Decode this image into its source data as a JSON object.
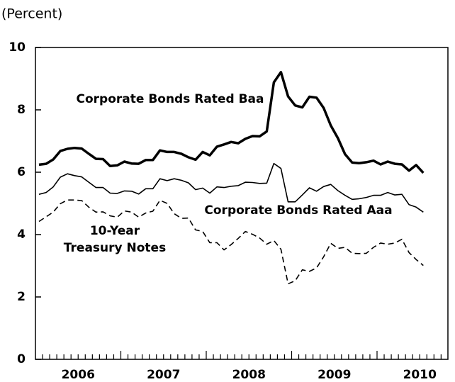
{
  "chart_data": {
    "type": "line",
    "unit_label": "(Percent)",
    "year_labels": [
      "2006",
      "2007",
      "2008",
      "2009",
      "2010"
    ],
    "ylim": [
      0,
      10
    ],
    "yticks": [
      0,
      2,
      4,
      6,
      8,
      10
    ],
    "series": [
      {
        "label": [
          "Corporate Bonds Rated Baa"
        ],
        "color": "#000000",
        "style": "thick",
        "values": [
          6.24,
          6.27,
          6.41,
          6.68,
          6.75,
          6.78,
          6.76,
          6.59,
          6.43,
          6.42,
          6.2,
          6.22,
          6.34,
          6.28,
          6.27,
          6.39,
          6.39,
          6.7,
          6.65,
          6.65,
          6.59,
          6.48,
          6.4,
          6.65,
          6.54,
          6.82,
          6.89,
          6.97,
          6.93,
          7.07,
          7.16,
          7.15,
          7.31,
          8.88,
          9.21,
          8.43,
          8.14,
          8.08,
          8.42,
          8.39,
          8.06,
          7.5,
          7.09,
          6.58,
          6.31,
          6.29,
          6.32,
          6.37,
          6.25,
          6.34,
          6.27,
          6.25,
          6.05,
          6.23,
          5.98
        ]
      },
      {
        "label": [
          "Corporate Bonds Rated Aaa"
        ],
        "color": "#000000",
        "style": "thin",
        "values": [
          5.29,
          5.35,
          5.53,
          5.84,
          5.95,
          5.89,
          5.85,
          5.68,
          5.51,
          5.51,
          5.33,
          5.32,
          5.4,
          5.39,
          5.3,
          5.47,
          5.47,
          5.79,
          5.73,
          5.79,
          5.74,
          5.66,
          5.44,
          5.49,
          5.33,
          5.53,
          5.51,
          5.55,
          5.57,
          5.68,
          5.67,
          5.64,
          5.65,
          6.28,
          6.12,
          5.05,
          5.05,
          5.27,
          5.5,
          5.39,
          5.54,
          5.61,
          5.41,
          5.26,
          5.13,
          5.15,
          5.19,
          5.26,
          5.26,
          5.35,
          5.27,
          5.29,
          4.96,
          4.88,
          4.72
        ]
      },
      {
        "label": [
          "10-Year",
          "Treasury Notes"
        ],
        "color": "#000000",
        "style": "dashed",
        "values": [
          4.42,
          4.57,
          4.72,
          4.99,
          5.11,
          5.11,
          5.09,
          4.88,
          4.72,
          4.73,
          4.6,
          4.56,
          4.76,
          4.72,
          4.56,
          4.69,
          4.75,
          5.1,
          5.0,
          4.67,
          4.52,
          4.53,
          4.15,
          4.1,
          3.74,
          3.74,
          3.51,
          3.68,
          3.88,
          4.1,
          4.01,
          3.89,
          3.69,
          3.81,
          3.53,
          2.42,
          2.52,
          2.87,
          2.82,
          2.93,
          3.29,
          3.72,
          3.56,
          3.59,
          3.4,
          3.39,
          3.4,
          3.59,
          3.73,
          3.69,
          3.73,
          3.85,
          3.42,
          3.2,
          3.01
        ]
      }
    ]
  }
}
